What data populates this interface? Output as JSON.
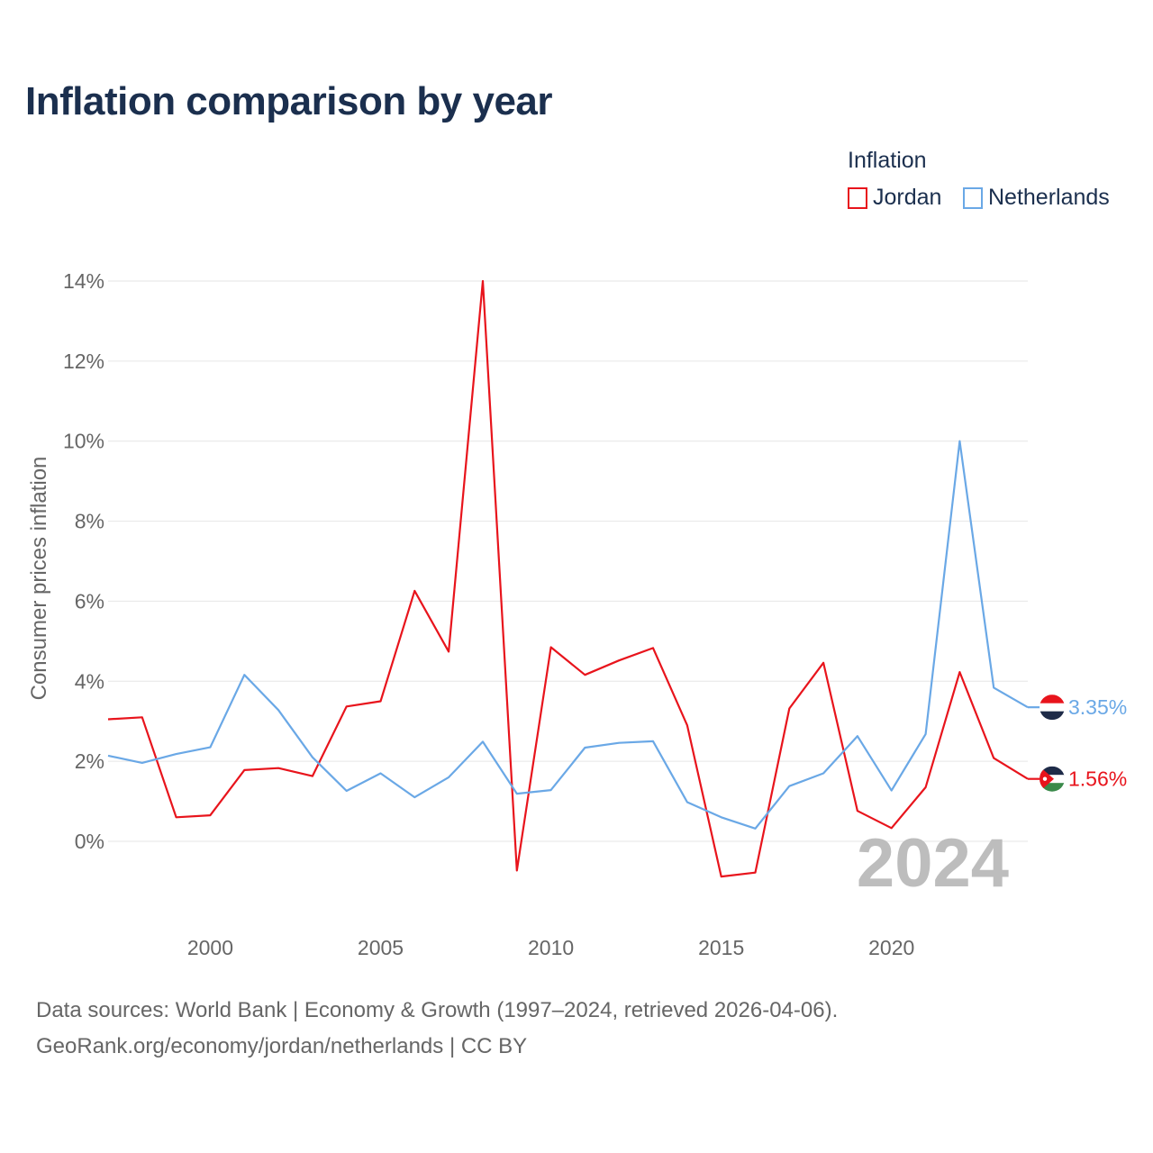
{
  "title": "Inflation comparison by year",
  "legend": {
    "title": "Inflation",
    "items": [
      {
        "label": "Jordan",
        "color": "#e8141c"
      },
      {
        "label": "Netherlands",
        "color": "#6aa8e6"
      }
    ]
  },
  "source": {
    "line1": "Data sources: World Bank | Economy & Growth (1997–2024, retrieved 2026-04-06).",
    "line2": "GeoRank.org/economy/jordan/netherlands | CC BY"
  },
  "chart_data": {
    "type": "line",
    "title": "Inflation comparison by year",
    "xlabel": "",
    "ylabel": "Consumer prices inflation",
    "xlim": [
      1997,
      2024
    ],
    "ylim": [
      -2.2,
      14
    ],
    "x_ticks": [
      2000,
      2005,
      2010,
      2015,
      2020
    ],
    "y_ticks": [
      0,
      2,
      4,
      6,
      8,
      10,
      12,
      14
    ],
    "y_tick_labels": [
      "0%",
      "2%",
      "4%",
      "6%",
      "8%",
      "10%",
      "12%",
      "14%"
    ],
    "grid": true,
    "year_watermark": "2024",
    "x": [
      1997,
      1998,
      1999,
      2000,
      2001,
      2002,
      2003,
      2004,
      2005,
      2006,
      2007,
      2008,
      2009,
      2010,
      2011,
      2012,
      2013,
      2014,
      2015,
      2016,
      2017,
      2018,
      2019,
      2020,
      2021,
      2022,
      2023,
      2024
    ],
    "series": [
      {
        "name": "Jordan",
        "color": "#e8141c",
        "end_label": "1.56%",
        "values": [
          3.05,
          3.1,
          0.6,
          0.65,
          1.78,
          1.83,
          1.63,
          3.37,
          3.5,
          6.26,
          4.74,
          14.0,
          -0.73,
          4.85,
          4.16,
          4.52,
          4.83,
          2.9,
          -0.88,
          -0.78,
          3.32,
          4.46,
          0.76,
          0.33,
          1.35,
          4.23,
          2.08,
          1.56
        ]
      },
      {
        "name": "Netherlands",
        "color": "#6aa8e6",
        "end_label": "3.35%",
        "values": [
          2.14,
          1.96,
          2.18,
          2.35,
          4.16,
          3.28,
          2.1,
          1.26,
          1.7,
          1.1,
          1.6,
          2.49,
          1.19,
          1.28,
          2.34,
          2.46,
          2.5,
          0.98,
          0.6,
          0.32,
          1.38,
          1.7,
          2.63,
          1.27,
          2.68,
          10.0,
          3.84,
          3.35
        ]
      }
    ]
  }
}
